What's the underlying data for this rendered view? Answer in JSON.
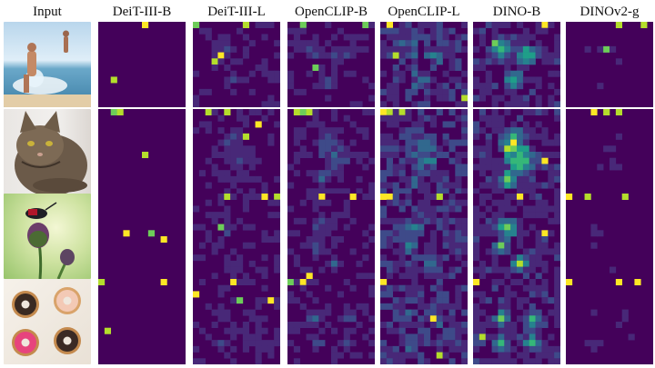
{
  "headers": [
    "Input",
    "DeiT-III-B",
    "DeiT-III-L",
    "OpenCLIP-B",
    "OpenCLIP-L",
    "DINO-B",
    "DINOv2-g"
  ],
  "rows": [
    {
      "image": "beach-splash-photo"
    },
    {
      "image": "cat-photo"
    },
    {
      "image": "insect-on-thistle-photo"
    },
    {
      "image": "donuts-photo"
    }
  ],
  "palette": [
    "#44015a",
    "#482878",
    "#3e4a89",
    "#31688e",
    "#26828e",
    "#1f9e89",
    "#35b779",
    "#6dcd59",
    "#b4de2c",
    "#fde725"
  ],
  "colors": {
    "background": "#ffffff",
    "map_base": "#44015a"
  }
}
